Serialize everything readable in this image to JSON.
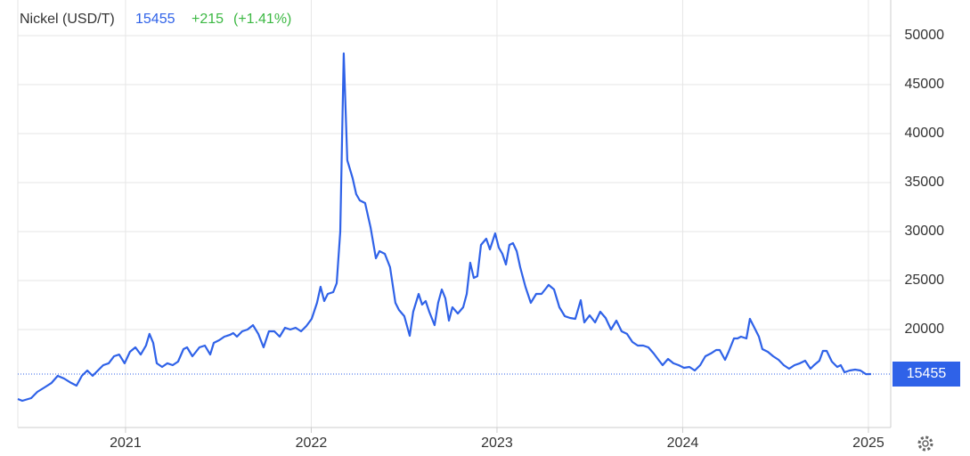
{
  "chart_data": {
    "type": "line",
    "title": "Nickel (USD/T)",
    "change": "+215",
    "change_percent": "(+1.41%)",
    "x": [
      2020.42,
      2020.444,
      2020.492,
      2020.525,
      2020.564,
      2020.602,
      2020.635,
      2020.669,
      2020.707,
      2020.736,
      2020.765,
      2020.794,
      2020.823,
      2020.851,
      2020.88,
      2020.909,
      2020.938,
      2020.966,
      2020.995,
      2021.024,
      2021.053,
      2021.082,
      2021.11,
      2021.129,
      2021.149,
      2021.168,
      2021.197,
      2021.225,
      2021.254,
      2021.283,
      2021.312,
      2021.331,
      2021.36,
      2021.379,
      2021.398,
      2021.427,
      2021.456,
      2021.475,
      2021.504,
      2021.532,
      2021.561,
      2021.58,
      2021.6,
      2021.628,
      2021.657,
      2021.686,
      2021.715,
      2021.743,
      2021.772,
      2021.801,
      2021.83,
      2021.859,
      2021.887,
      2021.916,
      2021.945,
      2021.974,
      2022.002,
      2022.031,
      2022.05,
      2022.07,
      2022.089,
      2022.118,
      2022.137,
      2022.156,
      2022.175,
      2022.194,
      2022.223,
      2022.242,
      2022.261,
      2022.29,
      2022.319,
      2022.348,
      2022.367,
      2022.396,
      2022.424,
      2022.453,
      2022.472,
      2022.501,
      2022.53,
      2022.549,
      2022.578,
      2022.597,
      2022.616,
      2022.635,
      2022.664,
      2022.683,
      2022.703,
      2022.722,
      2022.741,
      2022.76,
      2022.789,
      2022.818,
      2022.837,
      2022.856,
      2022.875,
      2022.894,
      2022.914,
      2022.942,
      2022.962,
      2022.99,
      2023.01,
      2023.029,
      2023.048,
      2023.067,
      2023.086,
      2023.106,
      2023.125,
      2023.153,
      2023.182,
      2023.211,
      2023.24,
      2023.259,
      2023.278,
      2023.307,
      2023.336,
      2023.365,
      2023.393,
      2023.422,
      2023.451,
      2023.47,
      2023.499,
      2023.528,
      2023.556,
      2023.585,
      2023.614,
      2023.643,
      2023.671,
      2023.7,
      2023.729,
      2023.758,
      2023.787,
      2023.815,
      2023.844,
      2023.873,
      2023.892,
      2023.921,
      2023.95,
      2023.978,
      2024.007,
      2024.036,
      2024.065,
      2024.094,
      2024.122,
      2024.151,
      2024.18,
      2024.199,
      2024.228,
      2024.247,
      2024.276,
      2024.295,
      2024.314,
      2024.343,
      2024.362,
      2024.391,
      2024.41,
      2024.429,
      2024.458,
      2024.487,
      2024.516,
      2024.544,
      2024.573,
      2024.602,
      2024.631,
      2024.659,
      2024.688,
      2024.707,
      2024.736,
      2024.755,
      2024.775,
      2024.803,
      2024.832,
      2024.851,
      2024.871,
      2024.899,
      2024.928,
      2024.957,
      2024.986,
      2025.014
    ],
    "series": [
      {
        "color": "#2f62e8",
        "values": [
          12910,
          12730,
          13000,
          13640,
          14090,
          14550,
          15270,
          15000,
          14550,
          14270,
          15270,
          15820,
          15270,
          15820,
          16360,
          16550,
          17270,
          17450,
          16550,
          17730,
          18180,
          17450,
          18360,
          19550,
          18640,
          16550,
          16180,
          16550,
          16360,
          16730,
          18000,
          18180,
          17270,
          17730,
          18180,
          18360,
          17450,
          18640,
          18910,
          19270,
          19450,
          19640,
          19270,
          19820,
          20000,
          20450,
          19550,
          18180,
          19820,
          19820,
          19270,
          20180,
          20000,
          20180,
          19820,
          20360,
          21090,
          22730,
          24360,
          22910,
          23640,
          23820,
          24730,
          30000,
          48180,
          37270,
          35450,
          33820,
          33180,
          32910,
          30450,
          27270,
          28000,
          27730,
          26360,
          22730,
          22000,
          21360,
          19360,
          21820,
          23640,
          22550,
          22910,
          21820,
          20450,
          22730,
          24090,
          23180,
          20910,
          22270,
          21640,
          22270,
          23640,
          26820,
          25270,
          25450,
          28640,
          29270,
          28180,
          29820,
          28360,
          27730,
          26640,
          28640,
          28820,
          28000,
          26360,
          24360,
          22730,
          23640,
          23640,
          24090,
          24550,
          24090,
          22270,
          21360,
          21180,
          21090,
          23000,
          20730,
          21450,
          20730,
          21820,
          21180,
          20000,
          20910,
          19820,
          19550,
          18730,
          18360,
          18360,
          18180,
          17550,
          16820,
          16360,
          17000,
          16550,
          16360,
          16090,
          16180,
          15820,
          16360,
          17270,
          17550,
          17910,
          17910,
          16910,
          17730,
          19090,
          19090,
          19270,
          19090,
          21090,
          20000,
          19270,
          18000,
          17730,
          17270,
          16910,
          16360,
          16000,
          16360,
          16550,
          16820,
          16000,
          16360,
          16820,
          17820,
          17820,
          16730,
          16180,
          16360,
          15640,
          15820,
          15910,
          15820,
          15450,
          15455
        ]
      }
    ],
    "xlim": [
      2020.42,
      2025.12
    ],
    "xticks": [
      2021,
      2022,
      2023,
      2024,
      2025
    ],
    "ylim": [
      10000,
      53000
    ],
    "yticks": [
      20000,
      25000,
      30000,
      35000,
      40000,
      45000,
      50000
    ],
    "grid": true
  }
}
